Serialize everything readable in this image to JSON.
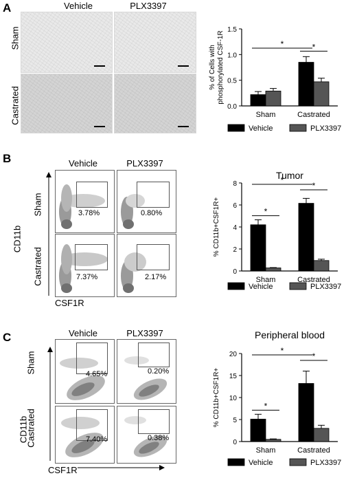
{
  "panel_labels": [
    "A",
    "B",
    "C"
  ],
  "panel_a": {
    "col_titles": [
      "Vehicle",
      "PLX3397"
    ],
    "row_titles": [
      "Sham",
      "Castrated"
    ]
  },
  "panel_b": {
    "col_titles": [
      "Vehicle",
      "PLX3397"
    ],
    "row_titles": [
      "Sham",
      "Castrated"
    ],
    "percentages": [
      "3.78%",
      "0.80%",
      "7.37%",
      "2.17%"
    ],
    "y_axis": "CD11b",
    "x_axis": "CSF1R"
  },
  "panel_c": {
    "col_titles": [
      "Vehicle",
      "PLX3397"
    ],
    "row_titles": [
      "Sham",
      "Castrated"
    ],
    "percentages": [
      "4.65%",
      "0.20%",
      "7.40%",
      "0.38%"
    ],
    "y_axis": "CD11b",
    "x_axis": "CSF1R"
  },
  "colors": {
    "vehicle": "#000000",
    "plx3397": "#555555",
    "tissue": "#e9e9e9"
  },
  "chart_data": [
    {
      "type": "bar",
      "title": "",
      "ylabel": "% of Cells with phosphorylated CSF-1R",
      "categories": [
        "Sham",
        "Castrated"
      ],
      "series": [
        {
          "name": "Vehicle",
          "values": [
            0.22,
            0.85
          ],
          "errors": [
            0.06,
            0.11
          ]
        },
        {
          "name": "PLX3397",
          "values": [
            0.29,
            0.47
          ],
          "errors": [
            0.05,
            0.07
          ]
        }
      ],
      "ylim": [
        0,
        1.5
      ],
      "yticks": [
        "0.0",
        "0.5",
        "1.0",
        "1.5"
      ],
      "significance": [
        {
          "from": "Sham",
          "to": "Castrated",
          "label": "*"
        },
        {
          "within": "Castrated",
          "label": "*"
        }
      ],
      "legend": "bottom"
    },
    {
      "type": "bar",
      "title": "Tumor",
      "ylabel": "% CD11b+CSF1R+",
      "categories": [
        "Sham",
        "Castrated"
      ],
      "series": [
        {
          "name": "Vehicle",
          "values": [
            4.2,
            6.15
          ],
          "errors": [
            0.45,
            0.45
          ]
        },
        {
          "name": "PLX3397",
          "values": [
            0.28,
            0.95
          ],
          "errors": [
            0.03,
            0.12
          ]
        }
      ],
      "ylim": [
        0,
        8
      ],
      "yticks": [
        "0",
        "2",
        "4",
        "6",
        "8"
      ],
      "significance": [
        {
          "within": "Sham",
          "label": "*"
        },
        {
          "from": "Sham",
          "to": "Castrated",
          "label": "*"
        },
        {
          "within": "Castrated",
          "label": "*"
        }
      ],
      "legend": "bottom"
    },
    {
      "type": "bar",
      "title": "Peripheral blood",
      "ylabel": "% CD11b+CSF1R+",
      "categories": [
        "Sham",
        "Castrated"
      ],
      "series": [
        {
          "name": "Vehicle",
          "values": [
            5.1,
            13.2
          ],
          "errors": [
            1.1,
            2.8
          ]
        },
        {
          "name": "PLX3397",
          "values": [
            0.5,
            3.0
          ],
          "errors": [
            0.1,
            0.7
          ]
        }
      ],
      "ylim": [
        0,
        20
      ],
      "yticks": [
        "0",
        "5",
        "10",
        "15",
        "20"
      ],
      "significance": [
        {
          "within": "Sham",
          "label": "*"
        },
        {
          "from": "Sham",
          "to": "Castrated",
          "label": "*"
        },
        {
          "within": "Castrated",
          "label": "*"
        }
      ],
      "legend": "bottom"
    }
  ]
}
